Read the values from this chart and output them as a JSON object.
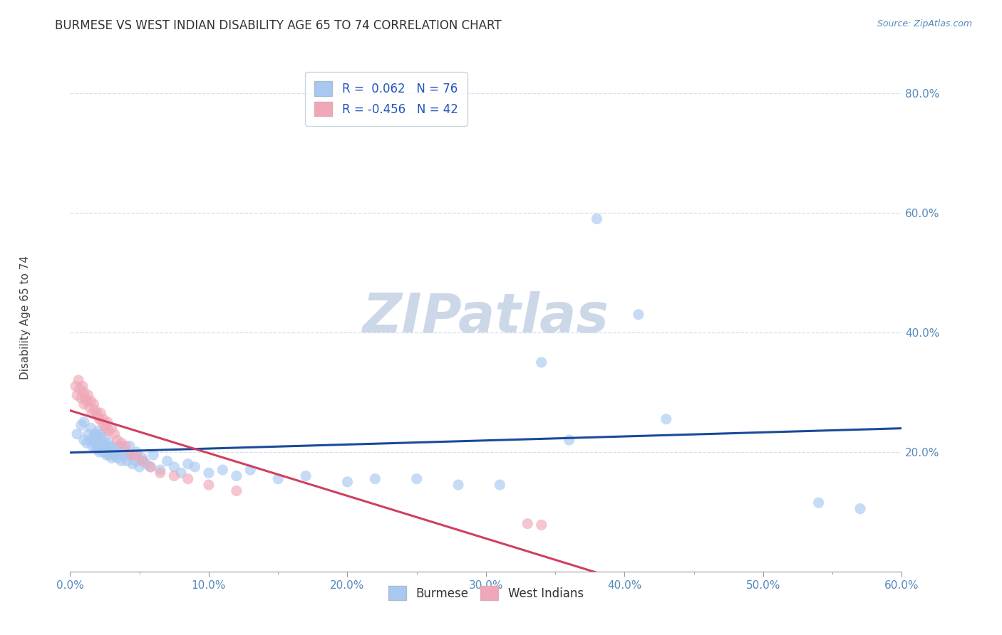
{
  "title": "BURMESE VS WEST INDIAN DISABILITY AGE 65 TO 74 CORRELATION CHART",
  "source_text": "Source: ZipAtlas.com",
  "ylabel": "Disability Age 65 to 74",
  "xlim": [
    0.0,
    0.6
  ],
  "ylim": [
    0.0,
    0.85
  ],
  "xtick_labels": [
    "0.0%",
    "",
    "10.0%",
    "",
    "20.0%",
    "",
    "30.0%",
    "",
    "40.0%",
    "",
    "50.0%",
    "",
    "60.0%"
  ],
  "xtick_vals": [
    0.0,
    0.05,
    0.1,
    0.15,
    0.2,
    0.25,
    0.3,
    0.35,
    0.4,
    0.45,
    0.5,
    0.55,
    0.6
  ],
  "xtick_show_labels": [
    "0.0%",
    "10.0%",
    "20.0%",
    "30.0%",
    "40.0%",
    "50.0%",
    "60.0%"
  ],
  "xtick_show_vals": [
    0.0,
    0.1,
    0.2,
    0.3,
    0.4,
    0.5,
    0.6
  ],
  "ytick_labels": [
    "20.0%",
    "40.0%",
    "60.0%",
    "80.0%"
  ],
  "ytick_vals": [
    0.2,
    0.4,
    0.6,
    0.8
  ],
  "burmese_color": "#a8c8f0",
  "west_indian_color": "#f0a8b8",
  "burmese_line_color": "#1a4a9a",
  "west_indian_line_color": "#d04060",
  "R_burmese": 0.062,
  "N_burmese": 76,
  "R_west_indian": -0.456,
  "N_west_indian": 42,
  "burmese_x": [
    0.005,
    0.008,
    0.01,
    0.01,
    0.012,
    0.013,
    0.015,
    0.015,
    0.016,
    0.017,
    0.018,
    0.018,
    0.019,
    0.02,
    0.02,
    0.02,
    0.021,
    0.022,
    0.022,
    0.023,
    0.023,
    0.024,
    0.025,
    0.025,
    0.026,
    0.027,
    0.028,
    0.028,
    0.03,
    0.03,
    0.031,
    0.032,
    0.033,
    0.034,
    0.035,
    0.036,
    0.037,
    0.038,
    0.04,
    0.041,
    0.042,
    0.043,
    0.045,
    0.046,
    0.047,
    0.048,
    0.05,
    0.052,
    0.053,
    0.055,
    0.058,
    0.06,
    0.065,
    0.07,
    0.075,
    0.08,
    0.085,
    0.09,
    0.1,
    0.11,
    0.12,
    0.13,
    0.15,
    0.17,
    0.2,
    0.22,
    0.25,
    0.28,
    0.31,
    0.34,
    0.36,
    0.38,
    0.41,
    0.43,
    0.54,
    0.57
  ],
  "burmese_y": [
    0.23,
    0.245,
    0.22,
    0.25,
    0.215,
    0.23,
    0.22,
    0.24,
    0.21,
    0.225,
    0.215,
    0.23,
    0.205,
    0.21,
    0.225,
    0.235,
    0.2,
    0.215,
    0.23,
    0.205,
    0.22,
    0.2,
    0.21,
    0.225,
    0.195,
    0.21,
    0.195,
    0.215,
    0.19,
    0.21,
    0.2,
    0.195,
    0.205,
    0.19,
    0.2,
    0.21,
    0.185,
    0.195,
    0.2,
    0.185,
    0.195,
    0.21,
    0.18,
    0.195,
    0.185,
    0.2,
    0.175,
    0.19,
    0.185,
    0.18,
    0.175,
    0.195,
    0.17,
    0.185,
    0.175,
    0.165,
    0.18,
    0.175,
    0.165,
    0.17,
    0.16,
    0.17,
    0.155,
    0.16,
    0.15,
    0.155,
    0.155,
    0.145,
    0.145,
    0.35,
    0.22,
    0.59,
    0.43,
    0.255,
    0.115,
    0.105
  ],
  "west_indian_x": [
    0.004,
    0.005,
    0.006,
    0.007,
    0.008,
    0.009,
    0.01,
    0.01,
    0.011,
    0.012,
    0.013,
    0.014,
    0.015,
    0.016,
    0.017,
    0.018,
    0.019,
    0.02,
    0.021,
    0.022,
    0.023,
    0.024,
    0.025,
    0.026,
    0.027,
    0.028,
    0.03,
    0.032,
    0.034,
    0.037,
    0.04,
    0.044,
    0.048,
    0.052,
    0.058,
    0.065,
    0.075,
    0.085,
    0.1,
    0.12,
    0.33,
    0.34
  ],
  "west_indian_y": [
    0.31,
    0.295,
    0.32,
    0.305,
    0.29,
    0.31,
    0.3,
    0.28,
    0.29,
    0.285,
    0.295,
    0.275,
    0.285,
    0.265,
    0.28,
    0.27,
    0.265,
    0.26,
    0.255,
    0.265,
    0.25,
    0.255,
    0.245,
    0.24,
    0.25,
    0.235,
    0.24,
    0.23,
    0.22,
    0.215,
    0.21,
    0.195,
    0.195,
    0.185,
    0.175,
    0.165,
    0.16,
    0.155,
    0.145,
    0.135,
    0.08,
    0.078
  ],
  "title_fontsize": 12,
  "axis_label_fontsize": 11,
  "tick_fontsize": 11,
  "legend_fontsize": 12,
  "watermark_text": "ZIPatlas",
  "watermark_color": "#ccd8e8",
  "watermark_fontsize": 55,
  "scatter_size": 120,
  "scatter_alpha": 0.65
}
